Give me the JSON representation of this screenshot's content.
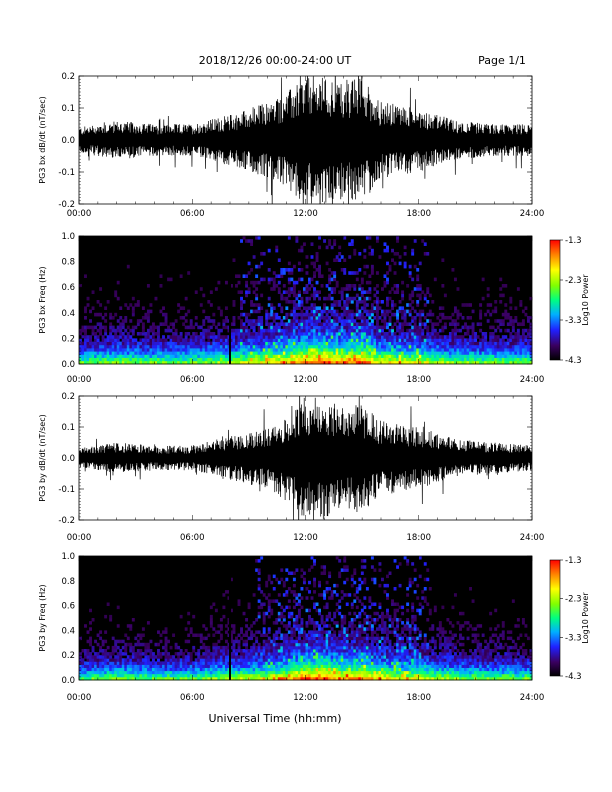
{
  "header": {
    "title": "2018/12/26  00:00-24:00 UT",
    "page": "Page 1/1"
  },
  "xlabel": "Universal Time (hh:mm)",
  "time_ticks": [
    "00:00",
    "06:00",
    "12:00",
    "18:00",
    "24:00"
  ],
  "colorbar": {
    "label": "Log10 Power",
    "ticks": [
      "-1.3",
      "-2.3",
      "-3.3",
      "-4.3"
    ]
  },
  "chart_data": [
    {
      "type": "line",
      "ylabel": "PG3 bx dB/dt (nT/sec)",
      "xlim": [
        0,
        24
      ],
      "ylim": [
        -0.2,
        0.2
      ],
      "yticks": [
        "0.2",
        "0.1",
        "0.0",
        "-0.1",
        "-0.2"
      ],
      "series": [
        {
          "x_hours": [
            0,
            2,
            4,
            6,
            8,
            10,
            11,
            12,
            13,
            14,
            15,
            16,
            18,
            20,
            22,
            24
          ],
          "amplitude_envelope": [
            0.04,
            0.06,
            0.05,
            0.05,
            0.08,
            0.12,
            0.15,
            0.2,
            0.2,
            0.18,
            0.2,
            0.12,
            0.1,
            0.06,
            0.05,
            0.05
          ]
        }
      ]
    },
    {
      "type": "heatmap",
      "ylabel": "PG3 bx Freq (Hz)",
      "xlim": [
        0,
        24
      ],
      "ylim": [
        0,
        1.0
      ],
      "yticks": [
        "1.0",
        "0.8",
        "0.6",
        "0.4",
        "0.2",
        "0.0"
      ],
      "zlim": [
        -4.3,
        -1.3
      ],
      "zlabel": "Log10 Power"
    },
    {
      "type": "line",
      "ylabel": "PG3 by dB/dt (nT/sec)",
      "xlim": [
        0,
        24
      ],
      "ylim": [
        -0.2,
        0.2
      ],
      "yticks": [
        "0.2",
        "0.1",
        "0.0",
        "-0.1",
        "-0.2"
      ],
      "series": [
        {
          "x_hours": [
            0,
            2,
            4,
            6,
            8,
            10,
            11,
            12,
            13,
            14,
            15,
            16,
            18,
            20,
            22,
            24
          ],
          "amplitude_envelope": [
            0.03,
            0.05,
            0.04,
            0.04,
            0.07,
            0.1,
            0.14,
            0.2,
            0.2,
            0.16,
            0.18,
            0.12,
            0.1,
            0.06,
            0.05,
            0.04
          ]
        }
      ]
    },
    {
      "type": "heatmap",
      "ylabel": "PG3 by Freq (Hz)",
      "xlim": [
        0,
        24
      ],
      "ylim": [
        0,
        1.0
      ],
      "yticks": [
        "1.0",
        "0.8",
        "0.6",
        "0.4",
        "0.2",
        "0.0"
      ],
      "zlim": [
        -4.3,
        -1.3
      ],
      "zlabel": "Log10 Power"
    }
  ]
}
